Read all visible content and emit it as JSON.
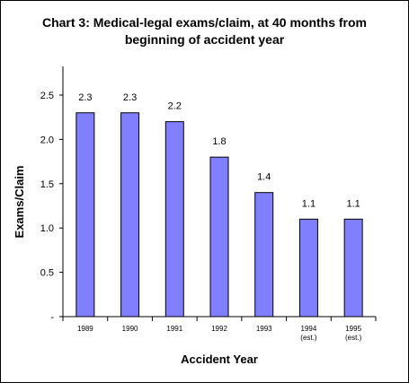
{
  "chart_data": {
    "type": "bar",
    "title_line1": "Chart 3: Medical-legal exams/claim, at 40 months from",
    "title_line2": "beginning of accident year",
    "xlabel": "Accident Year",
    "ylabel": "Exams/Claim",
    "categories": [
      {
        "line1": "1989",
        "line2": ""
      },
      {
        "line1": "1990",
        "line2": ""
      },
      {
        "line1": "1991",
        "line2": ""
      },
      {
        "line1": "1992",
        "line2": ""
      },
      {
        "line1": "1993",
        "line2": ""
      },
      {
        "line1": "1994",
        "line2": "(est.)"
      },
      {
        "line1": "1995",
        "line2": "(est.)"
      }
    ],
    "values": [
      2.3,
      2.3,
      2.2,
      1.8,
      1.4,
      1.1,
      1.1
    ],
    "data_labels": [
      "2.3",
      "2.3",
      "2.2",
      "1.8",
      "1.4",
      "1.1",
      "1.1"
    ],
    "yticks": [
      {
        "value": 0,
        "label": "-"
      },
      {
        "value": 0.5,
        "label": "0.5"
      },
      {
        "value": 1.0,
        "label": "1.0"
      },
      {
        "value": 1.5,
        "label": "1.5"
      },
      {
        "value": 2.0,
        "label": "2.0"
      },
      {
        "value": 2.5,
        "label": "2.5"
      }
    ],
    "ylim": [
      0,
      2.5
    ],
    "grid": false,
    "legend": "none",
    "bar_color": "#8080ff"
  }
}
